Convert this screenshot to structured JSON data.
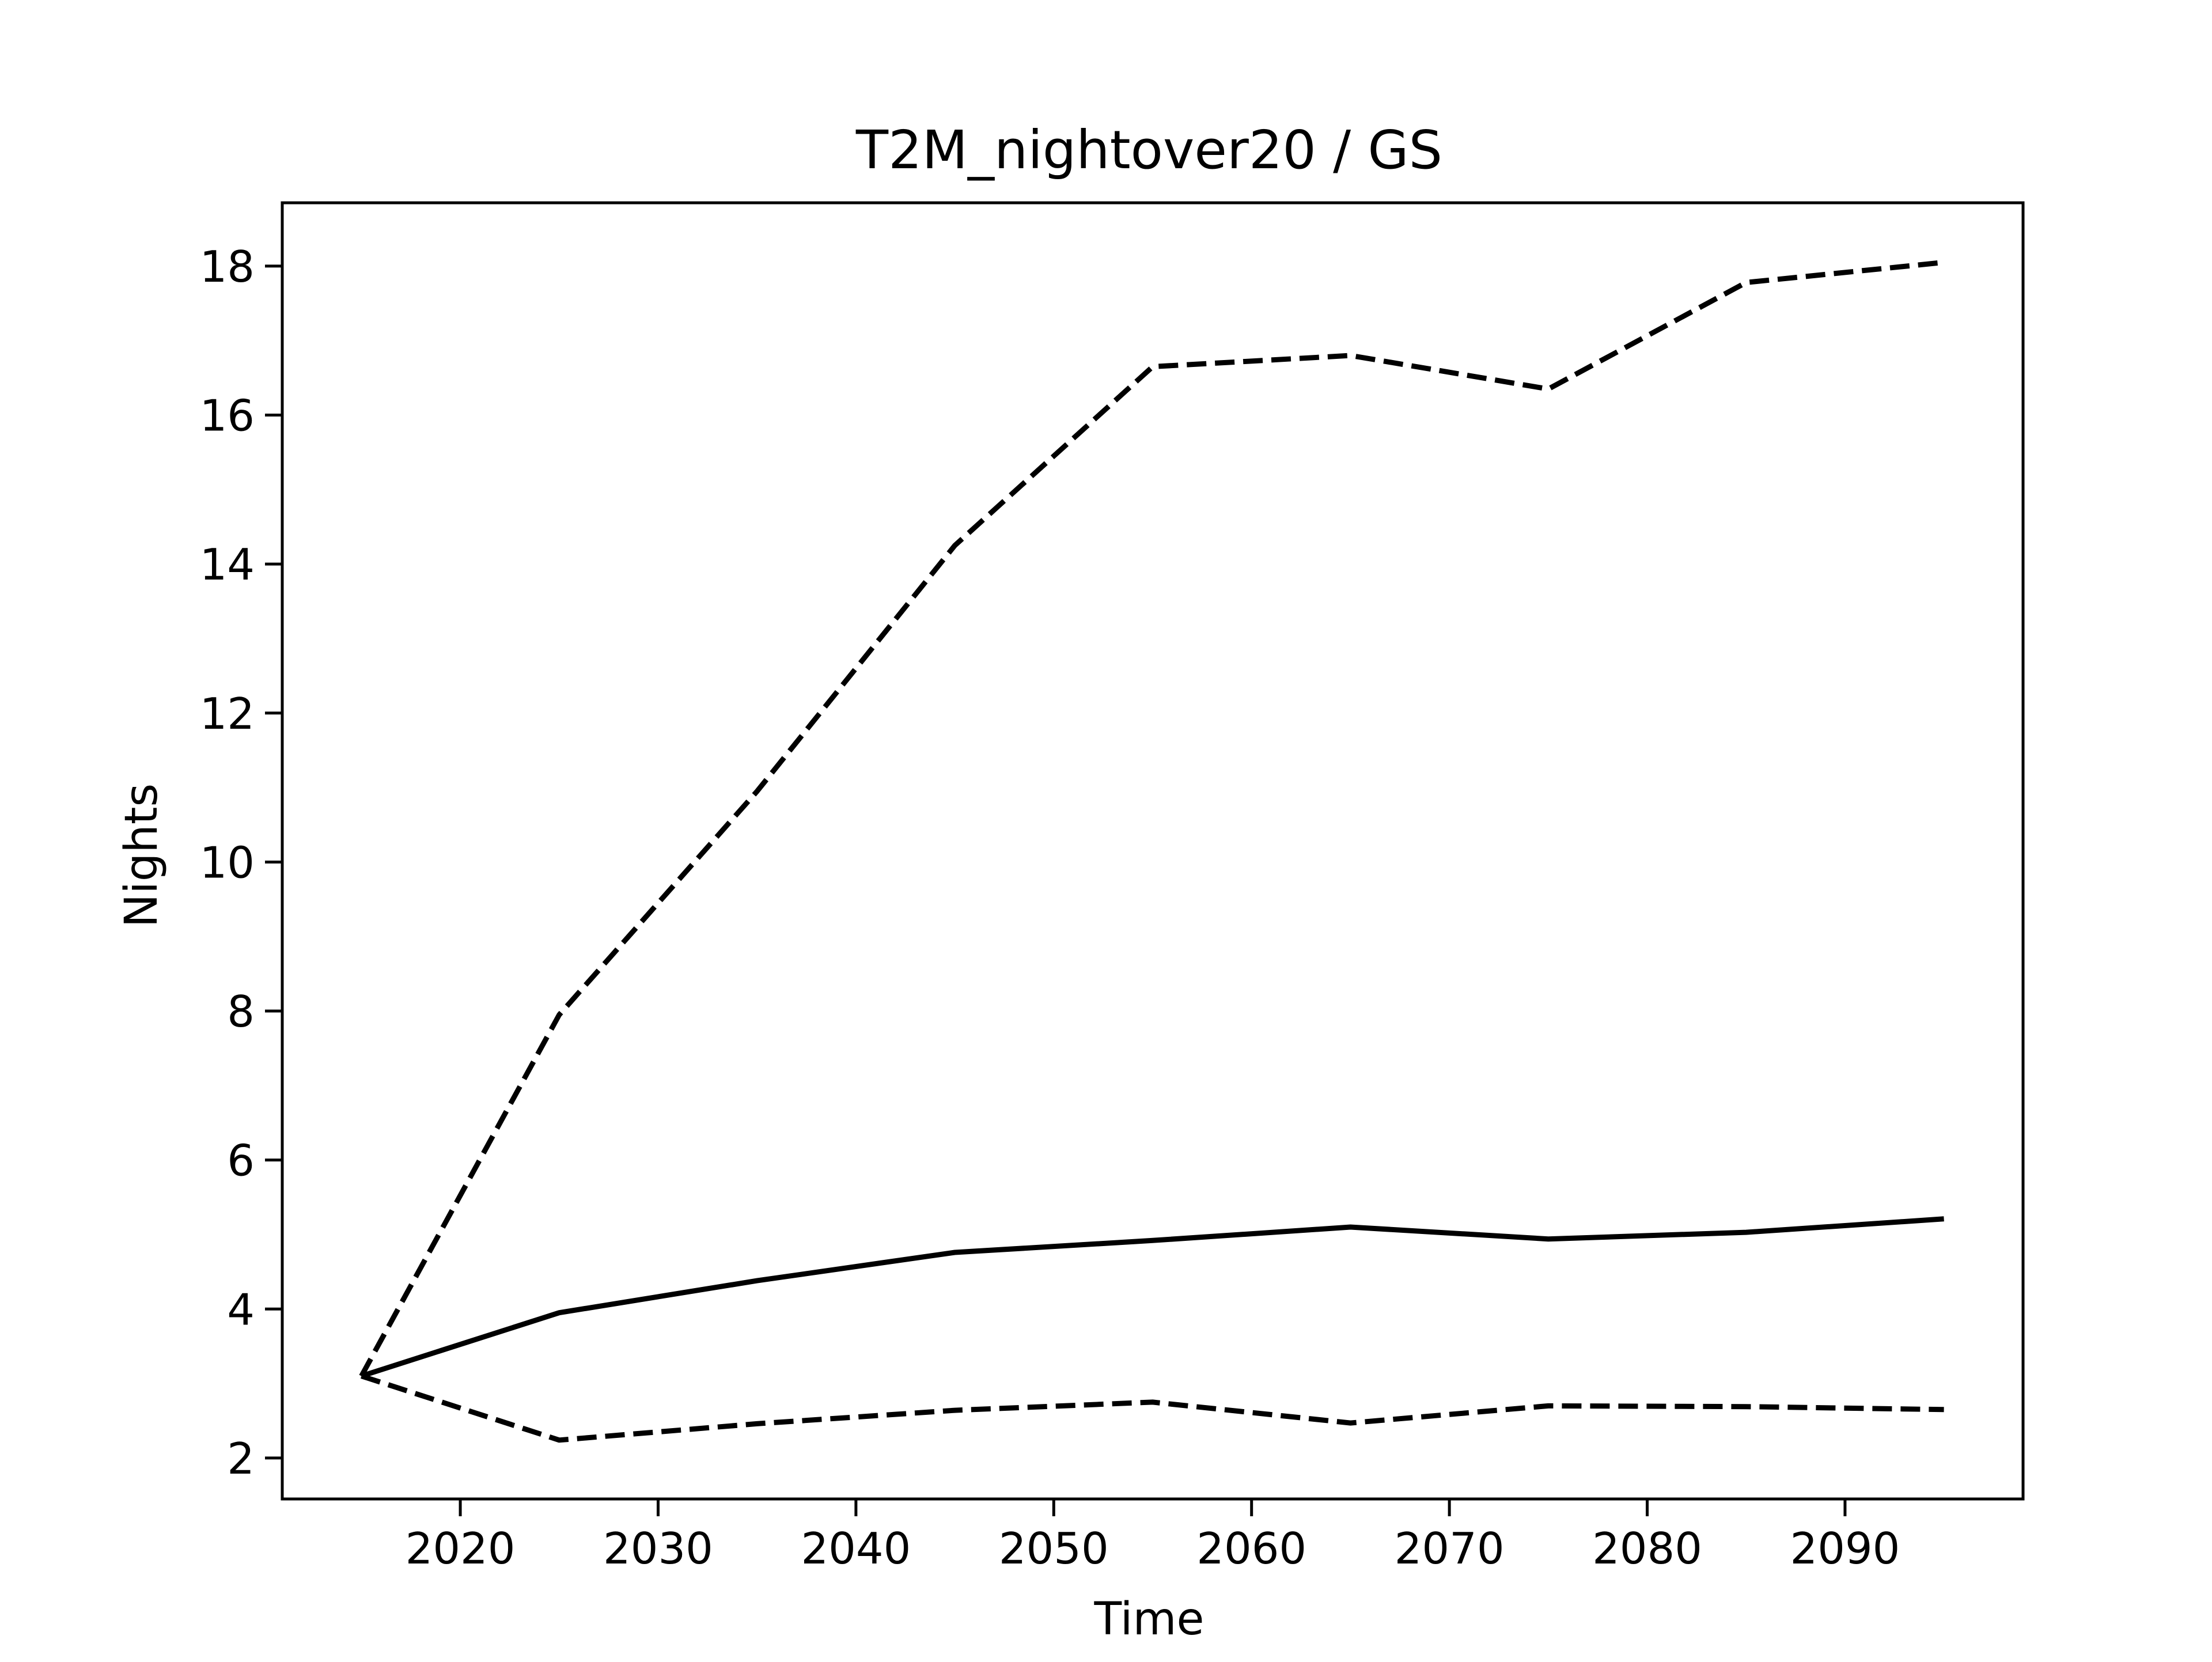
{
  "chart_data": {
    "type": "line",
    "title": "T2M_nightover20 / GS",
    "xlabel": "Time",
    "ylabel": "Nights",
    "xlim": [
      2011,
      2099
    ],
    "ylim": [
      1.45,
      18.85
    ],
    "x_ticks": [
      2020,
      2030,
      2040,
      2050,
      2060,
      2070,
      2080,
      2090
    ],
    "y_ticks": [
      2,
      4,
      6,
      8,
      10,
      12,
      14,
      16,
      18
    ],
    "grid": false,
    "legend": null,
    "x": [
      2015,
      2025,
      2035,
      2045,
      2055,
      2065,
      2075,
      2085,
      2095
    ],
    "series": [
      {
        "line_style": "dashed",
        "color": "#000000",
        "values": [
          3.1,
          7.95,
          10.95,
          14.25,
          16.65,
          16.8,
          16.35,
          17.78,
          18.05
        ]
      },
      {
        "line_style": "solid",
        "color": "#000000",
        "values": [
          3.1,
          3.95,
          4.38,
          4.76,
          4.92,
          5.1,
          4.94,
          5.03,
          5.21
        ]
      },
      {
        "line_style": "dashed",
        "color": "#000000",
        "values": [
          3.1,
          2.24,
          2.46,
          2.64,
          2.75,
          2.47,
          2.7,
          2.69,
          2.65
        ]
      }
    ]
  }
}
